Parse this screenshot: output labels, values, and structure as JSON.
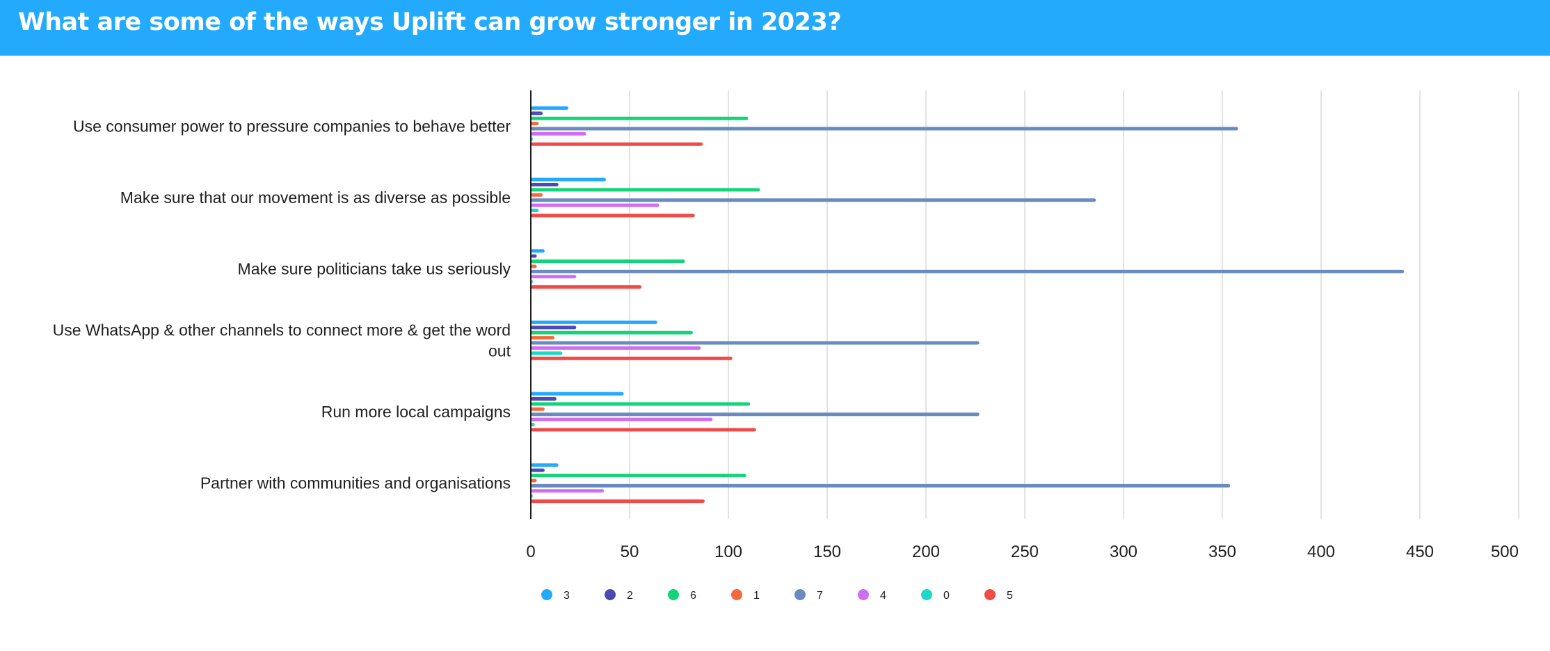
{
  "header": {
    "title": "What are some of the ways Uplift can grow stronger in 2023?",
    "background": "#23aafd"
  },
  "chart_data": {
    "type": "bar",
    "orientation": "horizontal",
    "categories": [
      [
        "Use consumer power to pressure companies to behave better"
      ],
      [
        "Make sure that our movement is as diverse as possible"
      ],
      [
        "Make sure politicians take us seriously"
      ],
      [
        "Use WhatsApp & other channels to connect more & get the word",
        "out"
      ],
      [
        "Run more local campaigns"
      ],
      [
        "Partner with communities and organisations"
      ]
    ],
    "series": [
      {
        "name": "3",
        "color": "#23aafd",
        "values": [
          19,
          38,
          7,
          64,
          47,
          14
        ]
      },
      {
        "name": "2",
        "color": "#4d4ab3",
        "values": [
          6,
          14,
          3,
          23,
          13,
          7
        ]
      },
      {
        "name": "6",
        "color": "#14d47a",
        "values": [
          110,
          116,
          78,
          82,
          111,
          109
        ]
      },
      {
        "name": "1",
        "color": "#f56a3d",
        "values": [
          4,
          6,
          3,
          12,
          7,
          3
        ]
      },
      {
        "name": "7",
        "color": "#6a8bc0",
        "values": [
          358,
          286,
          442,
          227,
          227,
          354
        ]
      },
      {
        "name": "4",
        "color": "#d06ef2",
        "values": [
          28,
          65,
          23,
          86,
          92,
          37
        ]
      },
      {
        "name": "0",
        "color": "#1fd8c7",
        "values": [
          1,
          4,
          1,
          16,
          2,
          1
        ]
      },
      {
        "name": "5",
        "color": "#f24a48",
        "values": [
          87,
          83,
          56,
          102,
          114,
          88
        ]
      }
    ],
    "xlim": [
      0,
      500
    ],
    "xticks": [
      "0",
      "50",
      "100",
      "150",
      "200",
      "250",
      "300",
      "350",
      "400",
      "450",
      "500"
    ],
    "grid": true,
    "legend_position": "bottom"
  }
}
